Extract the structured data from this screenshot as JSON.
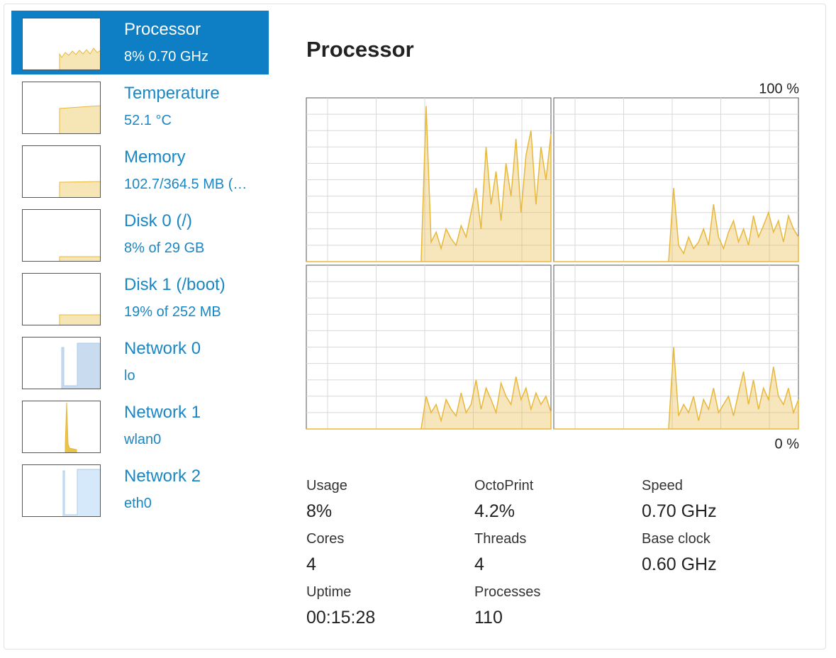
{
  "sidebar": {
    "items": [
      {
        "name": "Processor",
        "detail": "8% 0.70 GHz",
        "selected": true
      },
      {
        "name": "Temperature",
        "detail": "52.1 °C",
        "selected": false
      },
      {
        "name": "Memory",
        "detail": "102.7/364.5 MB (…",
        "selected": false
      },
      {
        "name": "Disk 0 (/)",
        "detail": "8% of 29 GB",
        "selected": false
      },
      {
        "name": "Disk 1 (/boot)",
        "detail": "19% of 252 MB",
        "selected": false
      },
      {
        "name": "Network 0",
        "detail": "lo",
        "selected": false
      },
      {
        "name": "Network 1",
        "detail": "wlan0",
        "selected": false
      },
      {
        "name": "Network 2",
        "detail": "eth0",
        "selected": false
      }
    ]
  },
  "main": {
    "title": "Processor",
    "cpu_chart": {
      "type": "area",
      "top_label": "100 %",
      "bottom_label": "0 %",
      "ylim": [
        0,
        100
      ],
      "color": "#e8b83c",
      "series": [
        {
          "values": [
            0,
            0,
            0,
            0,
            0,
            0,
            0,
            0,
            0,
            0,
            0,
            0,
            0,
            0,
            0,
            0,
            0,
            0,
            0,
            0,
            0,
            0,
            0,
            0,
            95,
            12,
            18,
            8,
            20,
            14,
            10,
            22,
            15,
            30,
            45,
            20,
            70,
            35,
            55,
            25,
            60,
            40,
            75,
            30,
            65,
            80,
            35,
            70,
            50,
            78
          ]
        },
        {
          "values": [
            0,
            0,
            0,
            0,
            0,
            0,
            0,
            0,
            0,
            0,
            0,
            0,
            0,
            0,
            0,
            0,
            0,
            0,
            0,
            0,
            0,
            0,
            0,
            0,
            45,
            10,
            5,
            15,
            8,
            12,
            20,
            10,
            35,
            15,
            8,
            18,
            25,
            12,
            20,
            10,
            28,
            15,
            22,
            30,
            18,
            25,
            12,
            28,
            20,
            15
          ]
        },
        {
          "values": [
            0,
            0,
            0,
            0,
            0,
            0,
            0,
            0,
            0,
            0,
            0,
            0,
            0,
            0,
            0,
            0,
            0,
            0,
            0,
            0,
            0,
            0,
            0,
            0,
            20,
            10,
            15,
            5,
            18,
            12,
            8,
            22,
            10,
            15,
            30,
            12,
            25,
            18,
            10,
            28,
            20,
            15,
            32,
            18,
            25,
            12,
            22,
            15,
            20,
            10
          ]
        },
        {
          "values": [
            0,
            0,
            0,
            0,
            0,
            0,
            0,
            0,
            0,
            0,
            0,
            0,
            0,
            0,
            0,
            0,
            0,
            0,
            0,
            0,
            0,
            0,
            0,
            0,
            50,
            8,
            15,
            10,
            20,
            5,
            18,
            12,
            25,
            10,
            15,
            20,
            8,
            22,
            35,
            15,
            30,
            12,
            25,
            18,
            38,
            20,
            15,
            25,
            10,
            18
          ]
        }
      ]
    },
    "stats": [
      {
        "label": "Usage",
        "value": "8%"
      },
      {
        "label": "OctoPrint",
        "value": "4.2%"
      },
      {
        "label": "Speed",
        "value": "0.70 GHz"
      },
      {
        "label": "Cores",
        "value": "4"
      },
      {
        "label": "Threads",
        "value": "4"
      },
      {
        "label": "Base clock",
        "value": "0.60 GHz"
      },
      {
        "label": "Uptime",
        "value": "00:15:28"
      },
      {
        "label": "Processes",
        "value": "110"
      }
    ]
  }
}
